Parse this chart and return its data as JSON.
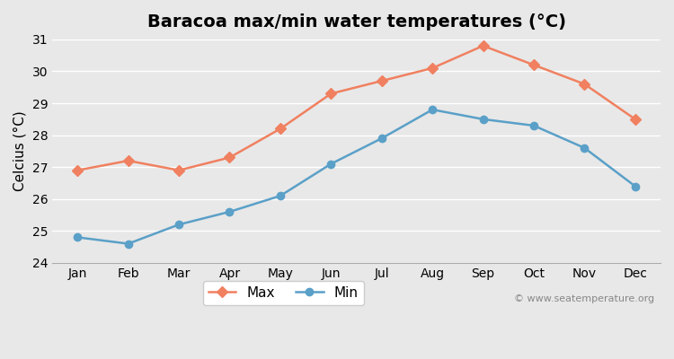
{
  "title": "Baracoa max/min water temperatures (°C)",
  "xlabel": "",
  "ylabel": "Celcius (°C)",
  "months": [
    "Jan",
    "Feb",
    "Mar",
    "Apr",
    "May",
    "Jun",
    "Jul",
    "Aug",
    "Sep",
    "Oct",
    "Nov",
    "Dec"
  ],
  "max_values": [
    26.9,
    27.2,
    26.9,
    27.3,
    28.2,
    29.3,
    29.7,
    30.1,
    30.8,
    30.2,
    29.6,
    28.5
  ],
  "min_values": [
    24.8,
    24.6,
    25.2,
    25.6,
    26.1,
    27.1,
    27.9,
    28.8,
    28.5,
    28.3,
    27.6,
    26.4
  ],
  "max_color": "#f08060",
  "min_color": "#5aa0c8",
  "ylim": [
    24,
    31
  ],
  "yticks": [
    24,
    25,
    26,
    27,
    28,
    29,
    30,
    31
  ],
  "bg_color": "#e8e8e8",
  "plot_bg_color": "#e8e8e8",
  "grid_color": "#ffffff",
  "watermark": "© www.seatemperature.org",
  "legend_labels": [
    "Max",
    "Min"
  ],
  "title_fontsize": 14,
  "label_fontsize": 11,
  "tick_fontsize": 10,
  "watermark_fontsize": 8
}
